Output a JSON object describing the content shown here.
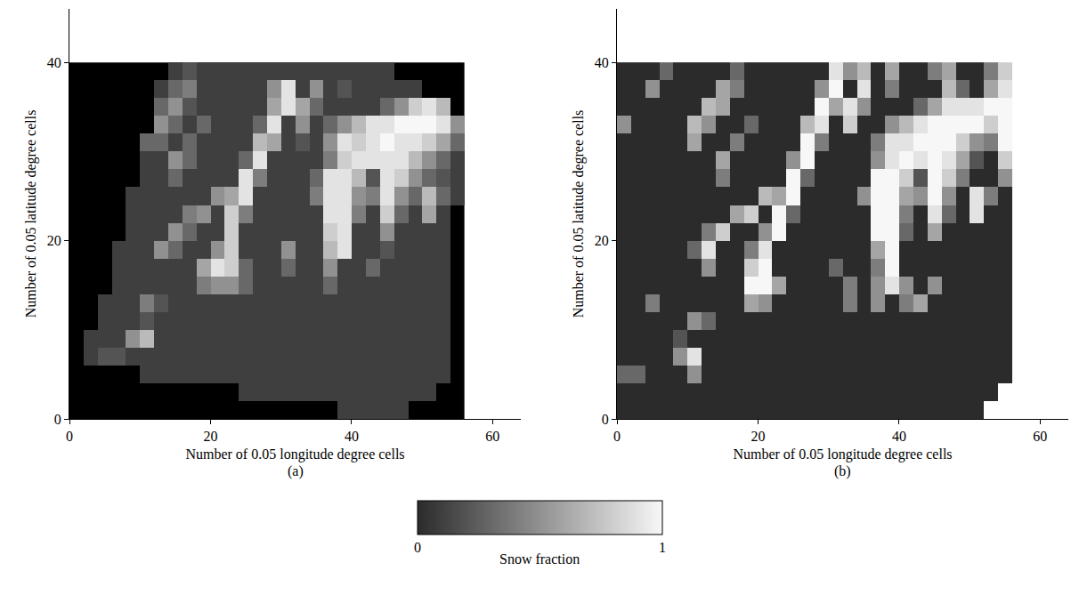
{
  "chart_data": [
    {
      "type": "heatmap",
      "panel_label": "(a)",
      "color": "#000000",
      "xlabel": "Number of 0.05 longitude degree cells",
      "ylabel": "Number of 0.05 latitude degree cells",
      "xlim": [
        0,
        64
      ],
      "xticks": [
        0,
        20,
        40,
        60
      ],
      "ylim": [
        0,
        46
      ],
      "yticks": [
        0,
        20,
        40
      ],
      "x": [
        1,
        3,
        5,
        7,
        9,
        11,
        13,
        15,
        17,
        19,
        21,
        23,
        25,
        27,
        29,
        31,
        33,
        35,
        37,
        39,
        41,
        43,
        45,
        47,
        49,
        51,
        53,
        55
      ],
      "y": [
        39,
        37,
        35,
        33,
        31,
        29,
        27,
        25,
        23,
        21,
        19,
        17,
        15,
        13,
        11,
        9,
        7,
        5,
        3,
        1
      ],
      "z": [
        [
          null,
          null,
          null,
          null,
          null,
          null,
          null,
          0.1,
          0.2,
          0.1,
          0.1,
          0.1,
          0.1,
          0.1,
          0.1,
          0.1,
          0.1,
          0.1,
          0.1,
          0.1,
          0.1,
          0.1,
          0.1,
          null,
          null,
          null,
          null,
          null
        ],
        [
          null,
          null,
          null,
          null,
          null,
          null,
          0.1,
          0.3,
          0.4,
          0.1,
          0.1,
          0.1,
          0.1,
          0.1,
          0.5,
          0.9,
          0.1,
          0.5,
          0.1,
          0.2,
          0.1,
          0.1,
          0.1,
          0.1,
          0.1,
          null,
          null,
          null
        ],
        [
          null,
          null,
          null,
          null,
          null,
          null,
          0.3,
          0.5,
          0.2,
          0.1,
          0.1,
          0.1,
          0.1,
          0.1,
          0.6,
          0.9,
          0.6,
          0.3,
          0.1,
          0.1,
          0.1,
          0.1,
          0.3,
          0.5,
          0.8,
          0.9,
          0.7,
          null
        ],
        [
          null,
          null,
          null,
          null,
          null,
          null,
          0.5,
          0.3,
          0.1,
          0.3,
          0.1,
          0.1,
          0.1,
          0.3,
          0.9,
          0.1,
          0.5,
          0.1,
          0.3,
          0.5,
          0.7,
          0.9,
          0.9,
          1,
          1,
          1,
          0.9,
          0.5
        ],
        [
          null,
          null,
          null,
          null,
          null,
          0.3,
          0.3,
          0.1,
          0.3,
          0.1,
          0.1,
          0.1,
          0.1,
          0.7,
          0.6,
          0.1,
          0.2,
          0.1,
          0.5,
          0.9,
          0.8,
          0.9,
          1,
          0.9,
          0.9,
          0.8,
          0.6,
          0.3
        ],
        [
          null,
          null,
          null,
          null,
          null,
          0.1,
          0.1,
          0.5,
          0.3,
          0.1,
          0.1,
          0.1,
          0.3,
          0.9,
          0.1,
          0.1,
          0.1,
          0.1,
          0.4,
          0.8,
          0.9,
          0.9,
          0.9,
          0.9,
          0.7,
          0.5,
          0.3,
          0.1
        ],
        [
          null,
          null,
          null,
          null,
          null,
          0.1,
          0.1,
          0.3,
          0.1,
          0.1,
          0.1,
          0.1,
          0.9,
          0.4,
          0.1,
          0.1,
          0.1,
          0.3,
          0.9,
          0.9,
          0.7,
          0.2,
          0.9,
          0.8,
          0.5,
          0.3,
          0.2,
          0.1
        ],
        [
          null,
          null,
          null,
          null,
          0.1,
          0.1,
          0.1,
          0.1,
          0.1,
          0.1,
          0.5,
          0.6,
          0.9,
          0.1,
          0.1,
          0.1,
          0.1,
          0.4,
          0.9,
          0.9,
          0.5,
          0.4,
          0.9,
          0.5,
          0.3,
          0.7,
          0.3,
          0.1
        ],
        [
          null,
          null,
          null,
          null,
          0.1,
          0.1,
          0.1,
          0.1,
          0.4,
          0.5,
          0.1,
          0.8,
          0.4,
          0.1,
          0.1,
          0.1,
          0.1,
          0.1,
          0.9,
          0.9,
          0.4,
          0.1,
          0.8,
          0.3,
          0.1,
          0.6,
          0.1,
          null
        ],
        [
          null,
          null,
          null,
          null,
          0.1,
          0.1,
          0.1,
          0.5,
          0.3,
          0.1,
          0.1,
          0.8,
          0.1,
          0.1,
          0.1,
          0.1,
          0.1,
          0.1,
          0.8,
          0.9,
          0.1,
          0.1,
          0.5,
          0.1,
          0.1,
          0.1,
          0.1,
          null
        ],
        [
          null,
          null,
          null,
          0.1,
          0.1,
          0.1,
          0.5,
          0.3,
          0.1,
          0.1,
          0.5,
          0.8,
          0.1,
          0.1,
          0.1,
          0.5,
          0.1,
          0.1,
          0.7,
          0.9,
          0.1,
          0.1,
          0.2,
          0.1,
          0.1,
          0.1,
          0.1,
          null
        ],
        [
          null,
          null,
          null,
          0.1,
          0.1,
          0.1,
          0.1,
          0.1,
          0.1,
          0.6,
          0.9,
          0.8,
          0.3,
          0.1,
          0.1,
          0.3,
          0.1,
          0.1,
          0.5,
          0.1,
          0.1,
          0.3,
          0.1,
          0.1,
          0.1,
          0.1,
          0.1,
          null
        ],
        [
          null,
          null,
          null,
          0.1,
          0.1,
          0.1,
          0.1,
          0.1,
          0.1,
          0.4,
          0.5,
          0.5,
          0.3,
          0.1,
          0.1,
          0.1,
          0.1,
          0.1,
          0.3,
          0.1,
          0.1,
          0.1,
          0.1,
          0.1,
          0.1,
          0.1,
          0.1,
          null
        ],
        [
          null,
          null,
          0.1,
          0.1,
          0.1,
          0.4,
          0.2,
          0.1,
          0.1,
          0.1,
          0.1,
          0.1,
          0.1,
          0.1,
          0.1,
          0.1,
          0.1,
          0.1,
          0.1,
          0.1,
          0.1,
          0.1,
          0.1,
          0.1,
          0.1,
          0.1,
          0.1,
          null
        ],
        [
          null,
          null,
          0.1,
          0.1,
          0.1,
          0.2,
          0.1,
          0.1,
          0.1,
          0.1,
          0.1,
          0.1,
          0.1,
          0.1,
          0.1,
          0.1,
          0.1,
          0.1,
          0.1,
          0.1,
          0.1,
          0.1,
          0.1,
          0.1,
          0.1,
          0.1,
          0.1,
          null
        ],
        [
          null,
          0.1,
          0.1,
          0.1,
          0.5,
          0.7,
          0.1,
          0.1,
          0.1,
          0.1,
          0.1,
          0.1,
          0.1,
          0.1,
          0.1,
          0.1,
          0.1,
          0.1,
          0.1,
          0.1,
          0.1,
          0.1,
          0.1,
          0.1,
          0.1,
          0.1,
          0.1,
          null
        ],
        [
          null,
          0.1,
          0.2,
          0.2,
          0.1,
          0.1,
          0.1,
          0.1,
          0.1,
          0.1,
          0.1,
          0.1,
          0.1,
          0.1,
          0.1,
          0.1,
          0.1,
          0.1,
          0.1,
          0.1,
          0.1,
          0.1,
          0.1,
          0.1,
          0.1,
          0.1,
          0.1,
          null
        ],
        [
          null,
          null,
          null,
          null,
          null,
          0.1,
          0.1,
          0.1,
          0.1,
          0.1,
          0.1,
          0.1,
          0.1,
          0.1,
          0.1,
          0.1,
          0.1,
          0.1,
          0.1,
          0.1,
          0.1,
          0.1,
          0.1,
          0.1,
          0.1,
          0.1,
          0.1,
          null
        ],
        [
          null,
          null,
          null,
          null,
          null,
          null,
          null,
          null,
          null,
          null,
          null,
          null,
          0.1,
          0.1,
          0.1,
          0.1,
          0.1,
          0.1,
          0.1,
          0.1,
          0.1,
          0.1,
          0.1,
          0.1,
          0.1,
          0.1,
          null,
          null
        ],
        [
          null,
          null,
          null,
          null,
          null,
          null,
          null,
          null,
          null,
          null,
          null,
          null,
          null,
          null,
          null,
          null,
          null,
          null,
          null,
          0.1,
          0.1,
          0.1,
          0.1,
          0.1,
          null,
          null,
          null,
          null
        ]
      ]
    },
    {
      "type": "heatmap",
      "panel_label": "(b)",
      "color": "#ffffff",
      "xlabel": "Number of 0.05 longitude degree cells",
      "ylabel": "Number of 0.05 latitude degree cells",
      "xlim": [
        0,
        64
      ],
      "xticks": [
        0,
        20,
        40,
        60
      ],
      "ylim": [
        0,
        46
      ],
      "yticks": [
        0,
        20,
        40
      ],
      "x": [
        1,
        3,
        5,
        7,
        9,
        11,
        13,
        15,
        17,
        19,
        21,
        23,
        25,
        27,
        29,
        31,
        33,
        35,
        37,
        39,
        41,
        43,
        45,
        47,
        49,
        51,
        53,
        55
      ],
      "y": [
        39,
        37,
        35,
        33,
        31,
        29,
        27,
        25,
        23,
        21,
        19,
        17,
        15,
        13,
        11,
        9,
        7,
        5,
        3,
        1
      ],
      "z": [
        [
          0,
          0,
          0,
          0.3,
          0,
          0,
          0,
          0,
          0.3,
          0,
          0,
          0,
          0,
          0,
          0,
          0.9,
          0.5,
          0.7,
          0,
          0.6,
          0,
          0,
          0.4,
          0.6,
          0,
          0,
          0.4,
          0.8
        ],
        [
          0,
          0,
          0.5,
          0,
          0,
          0,
          0,
          0.6,
          0.4,
          0,
          0,
          0,
          0,
          0,
          0.5,
          1,
          0,
          0.9,
          0,
          0.4,
          0,
          0,
          0,
          0.7,
          0.3,
          0,
          0.6,
          0.9
        ],
        [
          0,
          0,
          0,
          0,
          0,
          0,
          0.7,
          0.6,
          0,
          0,
          0,
          0,
          0,
          0,
          1,
          0.6,
          0.9,
          0.5,
          0,
          0,
          0,
          0.3,
          0.6,
          0.9,
          0.9,
          0.9,
          1,
          1
        ],
        [
          0.5,
          0,
          0,
          0,
          0,
          0.7,
          0.5,
          0,
          0,
          0.3,
          0,
          0,
          0,
          0.7,
          0.9,
          0,
          0.8,
          0,
          0,
          0.5,
          0.7,
          0.9,
          1,
          1,
          1,
          1,
          0.8,
          1
        ],
        [
          0,
          0,
          0,
          0,
          0,
          0.6,
          0,
          0,
          0.4,
          0,
          0,
          0,
          0,
          1,
          0.4,
          0,
          0,
          0,
          0.4,
          0.9,
          0.9,
          1,
          1,
          1,
          0.8,
          0.5,
          0.4,
          1
        ],
        [
          0,
          0,
          0,
          0,
          0,
          0,
          0,
          0.6,
          0,
          0,
          0,
          0,
          0.5,
          1,
          0,
          0,
          0,
          0,
          0.5,
          0.9,
          1,
          0.9,
          1,
          0.9,
          0.6,
          0.2,
          0,
          0.8
        ],
        [
          0,
          0,
          0,
          0,
          0,
          0,
          0,
          0.4,
          0,
          0,
          0,
          0,
          1,
          0.3,
          0,
          0,
          0,
          0,
          1,
          1,
          0.8,
          0.2,
          1,
          0.8,
          0.4,
          0,
          0,
          0.5
        ],
        [
          0,
          0,
          0,
          0,
          0,
          0,
          0,
          0,
          0,
          0,
          0.7,
          0.6,
          1,
          0,
          0,
          0,
          0,
          0.5,
          1,
          1,
          0.6,
          0.5,
          1,
          0.5,
          0,
          0.9,
          0.4,
          0
        ],
        [
          0,
          0,
          0,
          0,
          0,
          0,
          0,
          0,
          0.6,
          0.8,
          0,
          1,
          0.3,
          0,
          0,
          0,
          0,
          0,
          1,
          1,
          0.4,
          0,
          0.9,
          0.3,
          0,
          0.9,
          0,
          0
        ],
        [
          0,
          0,
          0,
          0,
          0,
          0,
          0.4,
          0.8,
          0,
          0,
          0.5,
          1,
          0,
          0,
          0,
          0,
          0,
          0,
          1,
          1,
          0.3,
          0,
          0.6,
          0,
          0,
          0,
          0,
          0
        ],
        [
          0,
          0,
          0,
          0,
          0,
          0.3,
          0.9,
          0,
          0,
          0.4,
          0.9,
          0,
          0,
          0,
          0,
          0,
          0,
          0,
          0.6,
          1,
          0,
          0,
          0,
          0,
          0,
          0,
          0,
          0
        ],
        [
          0,
          0,
          0,
          0,
          0,
          0,
          0.5,
          0,
          0,
          0.8,
          1,
          0,
          0,
          0,
          0,
          0.3,
          0,
          0,
          0.4,
          1,
          0,
          0,
          0,
          0,
          0,
          0,
          0,
          0
        ],
        [
          0,
          0,
          0,
          0,
          0,
          0,
          0,
          0,
          0,
          1,
          1,
          0.6,
          0,
          0,
          0,
          0,
          0.4,
          0,
          0.5,
          0.9,
          0.5,
          0,
          0.5,
          0,
          0,
          0,
          0,
          0
        ],
        [
          0,
          0,
          0.4,
          0,
          0,
          0,
          0,
          0,
          0,
          0.6,
          0.5,
          0,
          0,
          0,
          0,
          0,
          0.4,
          0,
          0.5,
          0,
          0.4,
          0.6,
          0,
          0,
          0,
          0,
          0,
          0
        ],
        [
          0,
          0,
          0,
          0,
          0,
          0.5,
          0.3,
          0,
          0,
          0,
          0,
          0,
          0,
          0,
          0,
          0,
          0,
          0,
          0,
          0,
          0,
          0,
          0,
          0,
          0,
          0,
          0,
          0
        ],
        [
          0,
          0,
          0,
          0,
          0.2,
          0,
          0,
          0,
          0,
          0,
          0,
          0,
          0,
          0,
          0,
          0,
          0,
          0,
          0,
          0,
          0,
          0,
          0,
          0,
          0,
          0,
          0,
          0
        ],
        [
          0,
          0,
          0,
          0,
          0.5,
          0.9,
          0,
          0,
          0,
          0,
          0,
          0,
          0,
          0,
          0,
          0,
          0,
          0,
          0,
          0,
          0,
          0,
          0,
          0,
          0,
          0,
          0,
          0
        ],
        [
          0.3,
          0.3,
          0,
          0,
          0,
          0.5,
          0,
          0,
          0,
          0,
          0,
          0,
          0,
          0,
          0,
          0,
          0,
          0,
          0,
          0,
          0,
          0,
          0,
          0,
          0,
          0,
          0,
          0
        ],
        [
          0,
          0,
          0,
          0,
          0,
          0,
          0,
          0,
          0,
          0,
          0,
          0,
          0,
          0,
          0,
          0,
          0,
          0,
          0,
          0,
          0,
          0,
          0,
          0,
          0,
          0,
          0,
          null
        ],
        [
          0,
          0,
          0,
          0,
          0,
          0,
          0,
          0,
          0,
          0,
          0,
          0,
          0,
          0,
          0,
          0,
          0,
          0,
          0,
          0,
          0,
          0,
          0,
          0,
          0,
          0,
          null,
          null
        ]
      ]
    }
  ],
  "colorbar": {
    "title": "Snow fraction",
    "range": [
      0,
      1
    ],
    "ticks": [
      0,
      1
    ]
  }
}
